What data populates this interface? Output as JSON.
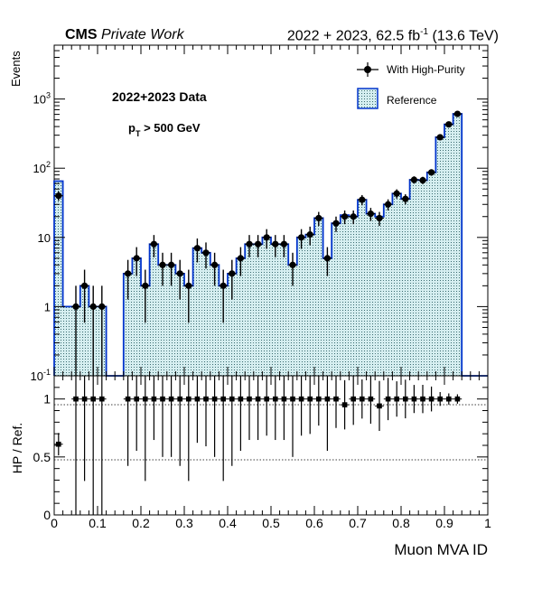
{
  "header": {
    "cms_label": "CMS",
    "cms_sub": "Private Work",
    "lumi_prefix": "2022 + 2023, 62.5 fb",
    "lumi_exp": "-1",
    "lumi_suffix": " (13.6 TeV)"
  },
  "annotations": {
    "dataset": "2022+2023 Data",
    "cut_p": "p",
    "cut_sub": "T",
    "cut_rest": " > 500 GeV"
  },
  "chart_data": [
    {
      "type": "histogram",
      "panel": "main",
      "xlabel": "Muon MVA ID",
      "ylabel": "Events",
      "log_y": true,
      "xlim": [
        0,
        1
      ],
      "ylim": [
        0.1,
        6000
      ],
      "y_tick_labels": [
        "10^-1",
        "1",
        "10",
        "10^2",
        "10^3"
      ],
      "legend_position": "top-right",
      "bin_width": 0.02,
      "bin_centers": [
        0.01,
        0.03,
        0.05,
        0.07,
        0.09,
        0.11,
        0.13,
        0.15,
        0.17,
        0.19,
        0.21,
        0.23,
        0.25,
        0.27,
        0.29,
        0.31,
        0.33,
        0.35,
        0.37,
        0.39,
        0.41,
        0.43,
        0.45,
        0.47,
        0.49,
        0.51,
        0.53,
        0.55,
        0.57,
        0.59,
        0.61,
        0.63,
        0.65,
        0.67,
        0.69,
        0.71,
        0.73,
        0.75,
        0.77,
        0.79,
        0.81,
        0.83,
        0.85,
        0.87,
        0.89,
        0.91,
        0.93,
        0.95,
        0.97,
        0.99
      ],
      "series": [
        {
          "name": "With High-Purity",
          "style": "points",
          "color": "#000000",
          "values": [
            40,
            0,
            1,
            2,
            1,
            1,
            0,
            0,
            3,
            5,
            2,
            8,
            4,
            4,
            3,
            2,
            7,
            6,
            4,
            2,
            3,
            5,
            8,
            8,
            10,
            8,
            8,
            4,
            10,
            11,
            19,
            5,
            16,
            20,
            20,
            35,
            22,
            19,
            30,
            43,
            36,
            68,
            67,
            87,
            280,
            430,
            610,
            0,
            0,
            0
          ]
        },
        {
          "name": "Reference",
          "style": "filled-histogram",
          "color": "#0033cc",
          "fill": "#d5eef0",
          "values": [
            65,
            1,
            1,
            2,
            1,
            1,
            0,
            0,
            3,
            5,
            2,
            8,
            4,
            4,
            3,
            2,
            7,
            6,
            4,
            2,
            3,
            5,
            8,
            8,
            10,
            8,
            8,
            4,
            10,
            11,
            19,
            5,
            16,
            21,
            20,
            35,
            22,
            20,
            30,
            43,
            36,
            68,
            67,
            87,
            280,
            430,
            610,
            0,
            0,
            0
          ]
        }
      ]
    },
    {
      "type": "scatter",
      "panel": "ratio",
      "xlabel": "Muon MVA ID",
      "ylabel": "HP / Ref.",
      "xlim": [
        0,
        1
      ],
      "ylim": [
        0,
        1.2
      ],
      "x_tick_labels": [
        "0",
        "0.1",
        "0.2",
        "0.3",
        "0.4",
        "0.5",
        "0.6",
        "0.7",
        "0.8",
        "0.9",
        "1"
      ],
      "y_tick_labels": [
        "0",
        "0.5",
        "1"
      ],
      "reference_lines": [
        0.5,
        1.0
      ],
      "x": [
        0.01,
        0.05,
        0.07,
        0.09,
        0.11,
        0.17,
        0.19,
        0.21,
        0.23,
        0.25,
        0.27,
        0.29,
        0.31,
        0.33,
        0.35,
        0.37,
        0.39,
        0.41,
        0.43,
        0.45,
        0.47,
        0.49,
        0.51,
        0.53,
        0.55,
        0.57,
        0.59,
        0.61,
        0.63,
        0.65,
        0.67,
        0.69,
        0.71,
        0.73,
        0.75,
        0.77,
        0.79,
        0.81,
        0.83,
        0.85,
        0.87,
        0.89,
        0.91,
        0.93
      ],
      "values": [
        0.61,
        1,
        1,
        1,
        1,
        1,
        1,
        1,
        1,
        1,
        1,
        1,
        1,
        1,
        1,
        1,
        1,
        1,
        1,
        1,
        1,
        1,
        1,
        1,
        1,
        1,
        1,
        1,
        1,
        1,
        0.95,
        1,
        1,
        1,
        0.94,
        1,
        1,
        1,
        1,
        1,
        1,
        1,
        1,
        1
      ]
    }
  ]
}
